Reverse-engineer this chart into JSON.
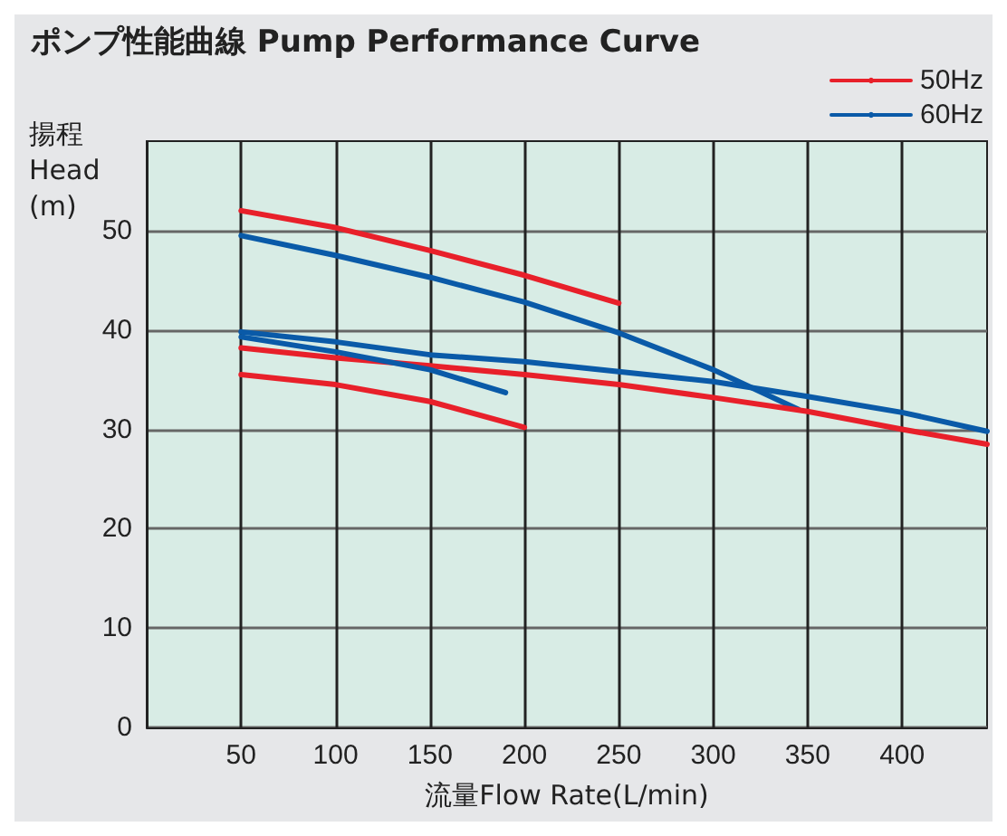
{
  "chart_data": {
    "type": "line",
    "title": "ポンプ性能曲線 Pump Performance Curve",
    "xlabel": "流量Flow Rate(L/min)",
    "ylabel": "揚程\nHead\n(m)",
    "xlim": [
      0,
      445
    ],
    "xticks": [
      50,
      100,
      150,
      200,
      250,
      300,
      350,
      400
    ],
    "ylim": [
      0,
      59
    ],
    "yticks": [
      0,
      10,
      20,
      30,
      40,
      50
    ],
    "grid": true,
    "legend": "top right",
    "marker": "none",
    "line_style": "solid",
    "series": [
      {
        "name": "50Hz",
        "color": "#e8202a",
        "x": [
          50,
          100,
          150,
          200,
          250
        ],
        "values": [
          52,
          50.3,
          48,
          45.5,
          42.7
        ]
      },
      {
        "name": "60Hz",
        "color": "#0a5aa8",
        "x": [
          50,
          100,
          150,
          200,
          250,
          300,
          345
        ],
        "values": [
          49.5,
          47.5,
          45.3,
          42.8,
          39.7,
          36,
          32
        ]
      },
      {
        "color": "#e8202a",
        "x": [
          50,
          100,
          150,
          200,
          250,
          300,
          350,
          400,
          445
        ],
        "values": [
          38.2,
          37.2,
          36.4,
          35.5,
          34.5,
          33.2,
          31.8,
          30,
          28.5
        ]
      },
      {
        "color": "#0a5aa8",
        "x": [
          50,
          100,
          150,
          200,
          250,
          300,
          350,
          400,
          445
        ],
        "values": [
          39.8,
          38.8,
          37.5,
          36.8,
          35.8,
          34.8,
          33.3,
          31.7,
          29.8
        ]
      },
      {
        "color": "#e8202a",
        "x": [
          50,
          100,
          150,
          200
        ],
        "values": [
          35.5,
          34.5,
          32.8,
          30.2
        ]
      },
      {
        "color": "#0a5aa8",
        "x": [
          50,
          100,
          150,
          190
        ],
        "values": [
          39.3,
          37.8,
          36,
          33.7
        ]
      }
    ]
  }
}
